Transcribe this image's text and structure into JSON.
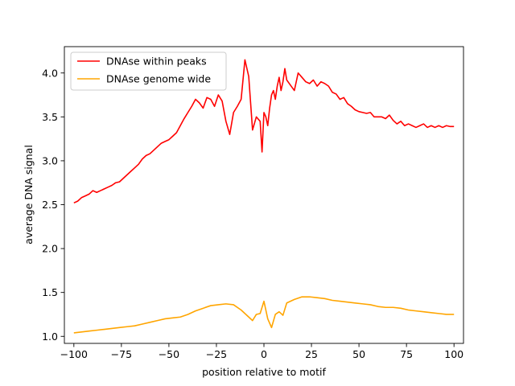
{
  "chart_data": {
    "type": "line",
    "xlabel": "position relative to motif",
    "ylabel": "average DNA signal",
    "xlim": [
      -105,
      105
    ],
    "ylim": [
      0.92,
      4.3
    ],
    "xticks": [
      -100,
      -75,
      -50,
      -25,
      0,
      25,
      50,
      75,
      100
    ],
    "xtick_labels": [
      "−100",
      "−75",
      "−50",
      "−25",
      "0",
      "25",
      "50",
      "75",
      "100"
    ],
    "yticks": [
      1.0,
      1.5,
      2.0,
      2.5,
      3.0,
      3.5,
      4.0
    ],
    "ytick_labels": [
      "1.0",
      "1.5",
      "2.0",
      "2.5",
      "3.0",
      "3.5",
      "4.0"
    ],
    "grid": false,
    "legend_position": "top-left",
    "series": [
      {
        "name": "DNAse within peaks",
        "color": "#ff0000",
        "x": [
          -100,
          -98,
          -96,
          -94,
          -92,
          -90,
          -88,
          -86,
          -84,
          -82,
          -80,
          -78,
          -76,
          -74,
          -72,
          -70,
          -68,
          -66,
          -64,
          -62,
          -60,
          -58,
          -56,
          -54,
          -52,
          -50,
          -48,
          -46,
          -44,
          -42,
          -40,
          -38,
          -36,
          -34,
          -32,
          -30,
          -28,
          -26,
          -24,
          -22,
          -20,
          -18,
          -16,
          -14,
          -12,
          -10,
          -8,
          -6,
          -4,
          -2,
          -1,
          0,
          1,
          2,
          3,
          4,
          5,
          6,
          7,
          8,
          9,
          10,
          11,
          12,
          14,
          16,
          18,
          20,
          22,
          24,
          26,
          28,
          30,
          32,
          34,
          36,
          38,
          40,
          42,
          44,
          46,
          48,
          50,
          52,
          54,
          56,
          58,
          60,
          62,
          64,
          66,
          68,
          70,
          72,
          74,
          76,
          78,
          80,
          82,
          84,
          86,
          88,
          90,
          92,
          94,
          96,
          98,
          100
        ],
        "y": [
          2.52,
          2.54,
          2.58,
          2.6,
          2.62,
          2.66,
          2.64,
          2.66,
          2.68,
          2.7,
          2.72,
          2.75,
          2.76,
          2.8,
          2.84,
          2.88,
          2.92,
          2.96,
          3.02,
          3.06,
          3.08,
          3.12,
          3.16,
          3.2,
          3.22,
          3.24,
          3.28,
          3.32,
          3.4,
          3.48,
          3.55,
          3.62,
          3.7,
          3.66,
          3.6,
          3.72,
          3.7,
          3.62,
          3.75,
          3.68,
          3.45,
          3.3,
          3.55,
          3.62,
          3.7,
          4.15,
          3.96,
          3.35,
          3.5,
          3.45,
          3.1,
          3.55,
          3.5,
          3.4,
          3.6,
          3.75,
          3.8,
          3.7,
          3.85,
          3.95,
          3.8,
          3.9,
          4.05,
          3.92,
          3.86,
          3.8,
          4.0,
          3.95,
          3.9,
          3.88,
          3.92,
          3.85,
          3.9,
          3.88,
          3.85,
          3.78,
          3.76,
          3.7,
          3.72,
          3.65,
          3.62,
          3.58,
          3.56,
          3.55,
          3.54,
          3.55,
          3.5,
          3.5,
          3.5,
          3.48,
          3.52,
          3.46,
          3.42,
          3.45,
          3.4,
          3.42,
          3.4,
          3.38,
          3.4,
          3.42,
          3.38,
          3.4,
          3.38,
          3.4,
          3.38,
          3.4,
          3.39,
          3.39
        ]
      },
      {
        "name": "DNAse genome wide",
        "color": "#ffa500",
        "x": [
          -100,
          -96,
          -92,
          -88,
          -84,
          -80,
          -76,
          -72,
          -68,
          -64,
          -60,
          -56,
          -52,
          -48,
          -44,
          -40,
          -36,
          -32,
          -28,
          -24,
          -20,
          -16,
          -12,
          -8,
          -6,
          -4,
          -2,
          0,
          2,
          4,
          6,
          8,
          10,
          12,
          16,
          20,
          24,
          28,
          32,
          36,
          40,
          44,
          48,
          52,
          56,
          60,
          64,
          68,
          72,
          76,
          80,
          84,
          88,
          92,
          96,
          100
        ],
        "y": [
          1.04,
          1.05,
          1.06,
          1.07,
          1.08,
          1.09,
          1.1,
          1.11,
          1.12,
          1.14,
          1.16,
          1.18,
          1.2,
          1.21,
          1.22,
          1.25,
          1.29,
          1.32,
          1.35,
          1.36,
          1.37,
          1.36,
          1.3,
          1.22,
          1.18,
          1.25,
          1.26,
          1.4,
          1.2,
          1.1,
          1.25,
          1.28,
          1.24,
          1.38,
          1.42,
          1.45,
          1.45,
          1.44,
          1.43,
          1.41,
          1.4,
          1.39,
          1.38,
          1.37,
          1.36,
          1.34,
          1.33,
          1.33,
          1.32,
          1.3,
          1.29,
          1.28,
          1.27,
          1.26,
          1.25,
          1.25
        ]
      }
    ]
  }
}
